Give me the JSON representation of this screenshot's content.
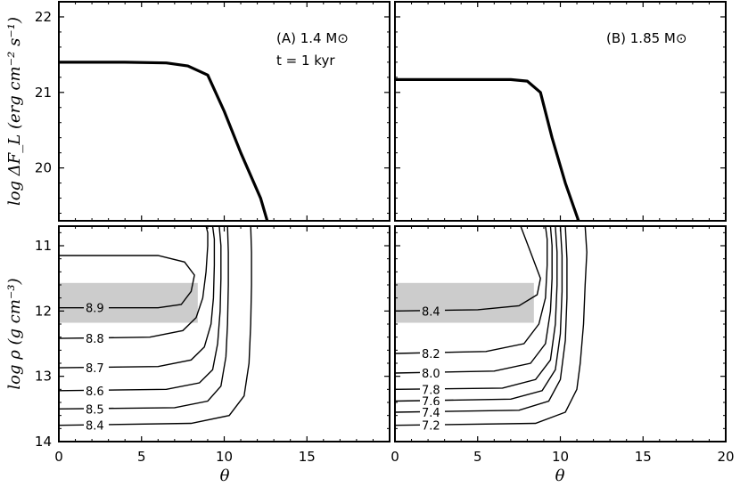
{
  "chart_data": [
    {
      "type": "line",
      "panel": "top-left",
      "annotation_line1": "(A) 1.4 M⊙",
      "annotation_line2": "t = 1  kyr",
      "ylabel": "log ΔF_L  (erg cm⁻² s⁻¹)",
      "xlim": [
        0,
        20
      ],
      "ylim": [
        19.3,
        22.2
      ],
      "y_ticks": [
        "22",
        "21",
        "20"
      ],
      "series": [
        {
          "x": [
            0,
            4,
            6.5,
            7.8,
            9,
            10,
            11,
            12.2,
            12.6
          ],
          "y": [
            21.4,
            21.4,
            21.39,
            21.35,
            21.23,
            20.75,
            20.2,
            19.6,
            19.3
          ]
        }
      ]
    },
    {
      "type": "line",
      "panel": "top-right",
      "annotation_line1": "(B) 1.85 M⊙",
      "xlim": [
        0,
        20
      ],
      "ylim": [
        19.3,
        22.2
      ],
      "series": [
        {
          "x": [
            0,
            4,
            7,
            8,
            8.8,
            9.5,
            10.3,
            11.1
          ],
          "y": [
            21.17,
            21.17,
            21.17,
            21.15,
            21.0,
            20.4,
            19.8,
            19.3
          ]
        }
      ]
    },
    {
      "type": "contour",
      "panel": "bottom-left",
      "xlabel": "θ",
      "ylabel": "log ρ  (g cm⁻³)",
      "xlim": [
        0,
        20
      ],
      "ylim": [
        10.7,
        14.0
      ],
      "x_ticks": [
        "0",
        "5",
        "10",
        "15"
      ],
      "y_ticks": [
        "11",
        "12",
        "13",
        "14"
      ],
      "shaded_band": [
        11.57,
        12.18
      ],
      "contours": [
        {
          "label": "8.9",
          "x": [
            0,
            6,
            7.6,
            8.2,
            8.0,
            7.4,
            6.0,
            3.5,
            0
          ],
          "y": [
            11.15,
            11.15,
            11.25,
            11.45,
            11.7,
            11.9,
            11.95,
            11.95,
            11.95
          ]
        },
        {
          "label": "8.8",
          "x": [
            0,
            5.5,
            7.5,
            8.3,
            8.7,
            8.9,
            9.0,
            9.0,
            8.9
          ],
          "y": [
            12.42,
            12.4,
            12.3,
            12.1,
            11.8,
            11.4,
            11.0,
            10.8,
            10.7
          ]
        },
        {
          "label": "8.7",
          "x": [
            0,
            6,
            8,
            8.8,
            9.2,
            9.35,
            9.4,
            9.4,
            9.3
          ],
          "y": [
            12.87,
            12.85,
            12.75,
            12.55,
            12.2,
            11.8,
            11.3,
            10.9,
            10.7
          ]
        },
        {
          "label": "8.6",
          "x": [
            0,
            6.5,
            8.5,
            9.3,
            9.6,
            9.75,
            9.8,
            9.8,
            9.7
          ],
          "y": [
            13.22,
            13.2,
            13.1,
            12.9,
            12.5,
            12.0,
            11.5,
            11.0,
            10.7
          ]
        },
        {
          "label": "8.5",
          "x": [
            0,
            7,
            9,
            9.8,
            10.1,
            10.2,
            10.25,
            10.25,
            10.2
          ],
          "y": [
            13.5,
            13.48,
            13.38,
            13.15,
            12.7,
            12.2,
            11.6,
            11.1,
            10.7
          ]
        },
        {
          "label": "8.4",
          "x": [
            0,
            8,
            10.3,
            11.2,
            11.5,
            11.6,
            11.65,
            11.65,
            11.6
          ],
          "y": [
            13.75,
            13.72,
            13.6,
            13.3,
            12.8,
            12.2,
            11.6,
            11.1,
            10.7
          ]
        }
      ]
    },
    {
      "type": "contour",
      "panel": "bottom-right",
      "xlabel": "θ",
      "xlim": [
        0,
        20
      ],
      "ylim": [
        10.7,
        14.0
      ],
      "x_ticks": [
        "0",
        "5",
        "10",
        "15",
        "20"
      ],
      "shaded_band": [
        11.57,
        12.18
      ],
      "contours": [
        {
          "label": "8.4",
          "x": [
            0,
            5,
            7.5,
            8.6,
            8.8,
            8.2,
            7.6
          ],
          "y": [
            12.0,
            11.98,
            11.92,
            11.75,
            11.5,
            11.1,
            10.7
          ]
        },
        {
          "label": "8.2",
          "x": [
            0,
            5.5,
            7.8,
            8.7,
            9.1,
            9.2,
            9.2,
            9.1
          ],
          "y": [
            12.65,
            12.62,
            12.5,
            12.2,
            11.8,
            11.3,
            10.9,
            10.7
          ]
        },
        {
          "label": "8.0",
          "x": [
            0,
            6,
            8.2,
            9.1,
            9.4,
            9.5,
            9.5,
            9.4
          ],
          "y": [
            12.95,
            12.92,
            12.8,
            12.5,
            12.0,
            11.5,
            11.0,
            10.7
          ]
        },
        {
          "label": "7.8",
          "x": [
            0,
            6.5,
            8.5,
            9.4,
            9.7,
            9.8,
            9.8,
            9.7
          ],
          "y": [
            13.2,
            13.18,
            13.05,
            12.75,
            12.2,
            11.6,
            11.1,
            10.7
          ]
        },
        {
          "label": "7.6",
          "x": [
            0,
            7,
            8.9,
            9.7,
            10.0,
            10.1,
            10.1,
            10.0
          ],
          "y": [
            13.38,
            13.35,
            13.22,
            12.9,
            12.35,
            11.7,
            11.15,
            10.7
          ]
        },
        {
          "label": "7.4",
          "x": [
            0,
            7.5,
            9.3,
            10.0,
            10.3,
            10.4,
            10.4,
            10.3
          ],
          "y": [
            13.55,
            13.52,
            13.38,
            13.05,
            12.45,
            11.8,
            11.2,
            10.7
          ]
        },
        {
          "label": "7.2",
          "x": [
            0,
            8.5,
            10.3,
            11.0,
            11.2,
            11.4,
            11.5,
            11.6,
            11.5
          ],
          "y": [
            13.75,
            13.72,
            13.55,
            13.2,
            12.8,
            12.2,
            11.6,
            11.1,
            10.7
          ]
        }
      ]
    }
  ]
}
